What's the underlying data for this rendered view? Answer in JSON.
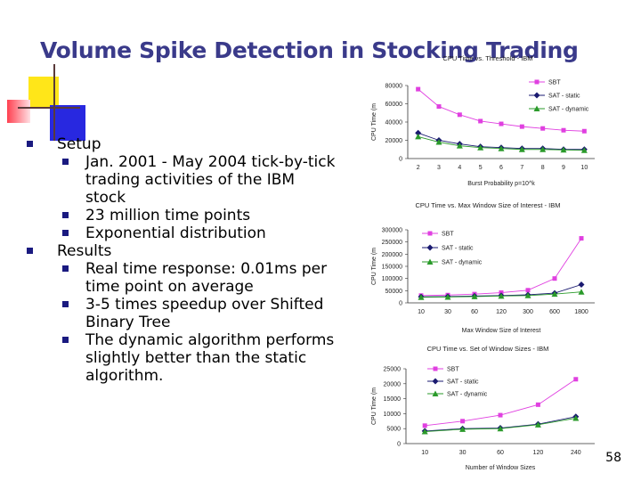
{
  "slide": {
    "title": "Volume Spike Detection in Stocking Trading",
    "page_number": "58"
  },
  "bullets": [
    {
      "text": "Setup",
      "sub": [
        "Jan. 2001 - May 2004 tick-by-tick trading activities of the IBM stock",
        "23 million time points",
        "Exponential distribution"
      ]
    },
    {
      "text": "Results",
      "sub": [
        "Real time response: 0.01ms per time point on average",
        "3-5 times speedup over Shifted Binary Tree",
        "The dynamic algorithm performs slightly better than the static algorithm."
      ]
    }
  ],
  "colors": {
    "title": "#3a3a8a",
    "sbt": "#e040e0",
    "static": "#1a1a70",
    "dynamic": "#2a9a2a",
    "bullet": "#1a1a80"
  },
  "chart_data": [
    {
      "type": "line",
      "title": "CPU Time vs. Threshold - IBM",
      "xlabel": "Burst Probability p=10^k",
      "ylabel": "CPU Time (m",
      "categories": [
        "2",
        "3",
        "4",
        "5",
        "6",
        "7",
        "8",
        "9",
        "10"
      ],
      "ylim": [
        0,
        80000
      ],
      "yticks": [
        "0",
        "20000",
        "40000",
        "60000",
        "80000"
      ],
      "legend_position": "top-right",
      "series": [
        {
          "name": "SBT",
          "values": [
            76000,
            57000,
            48000,
            41000,
            38000,
            35000,
            33000,
            31000,
            30000
          ]
        },
        {
          "name": "SAT - static",
          "values": [
            28000,
            20000,
            16000,
            13000,
            12000,
            11000,
            11000,
            10000,
            10000
          ]
        },
        {
          "name": "SAT - dynamic",
          "values": [
            24000,
            18000,
            14000,
            12000,
            11000,
            10000,
            10000,
            9500,
            9000
          ]
        }
      ]
    },
    {
      "type": "line",
      "title": "CPU Time vs. Max Window Size of Interest - IBM",
      "xlabel": "Max Window Size of Interest",
      "ylabel": "CPU Time (m",
      "categories": [
        "10",
        "30",
        "60",
        "120",
        "300",
        "600",
        "1800"
      ],
      "ylim": [
        0,
        300000
      ],
      "yticks": [
        "0",
        "50000",
        "100000",
        "150000",
        "200000",
        "250000",
        "300000"
      ],
      "legend_position": "top-left",
      "series": [
        {
          "name": "SBT",
          "values": [
            30000,
            32000,
            36000,
            42000,
            52000,
            100000,
            265000
          ]
        },
        {
          "name": "SAT - static",
          "values": [
            25000,
            26000,
            28000,
            30000,
            33000,
            40000,
            75000
          ]
        },
        {
          "name": "SAT - dynamic",
          "values": [
            23000,
            24000,
            26000,
            28000,
            30000,
            36000,
            45000
          ]
        }
      ]
    },
    {
      "type": "line",
      "title": "CPU Time vs. Set of Window Sizes - IBM",
      "xlabel": "Number of Window Sizes",
      "ylabel": "CPU Time (m",
      "categories": [
        "10",
        "30",
        "60",
        "120",
        "240"
      ],
      "ylim": [
        0,
        25000
      ],
      "yticks": [
        "0",
        "5000",
        "10000",
        "15000",
        "20000",
        "25000"
      ],
      "legend_position": "top-left",
      "series": [
        {
          "name": "SBT",
          "values": [
            6000,
            7500,
            9500,
            13000,
            21500
          ]
        },
        {
          "name": "SAT - static",
          "values": [
            4200,
            5000,
            5200,
            6500,
            9000
          ]
        },
        {
          "name": "SAT - dynamic",
          "values": [
            4000,
            4800,
            5000,
            6300,
            8500
          ]
        }
      ]
    }
  ]
}
